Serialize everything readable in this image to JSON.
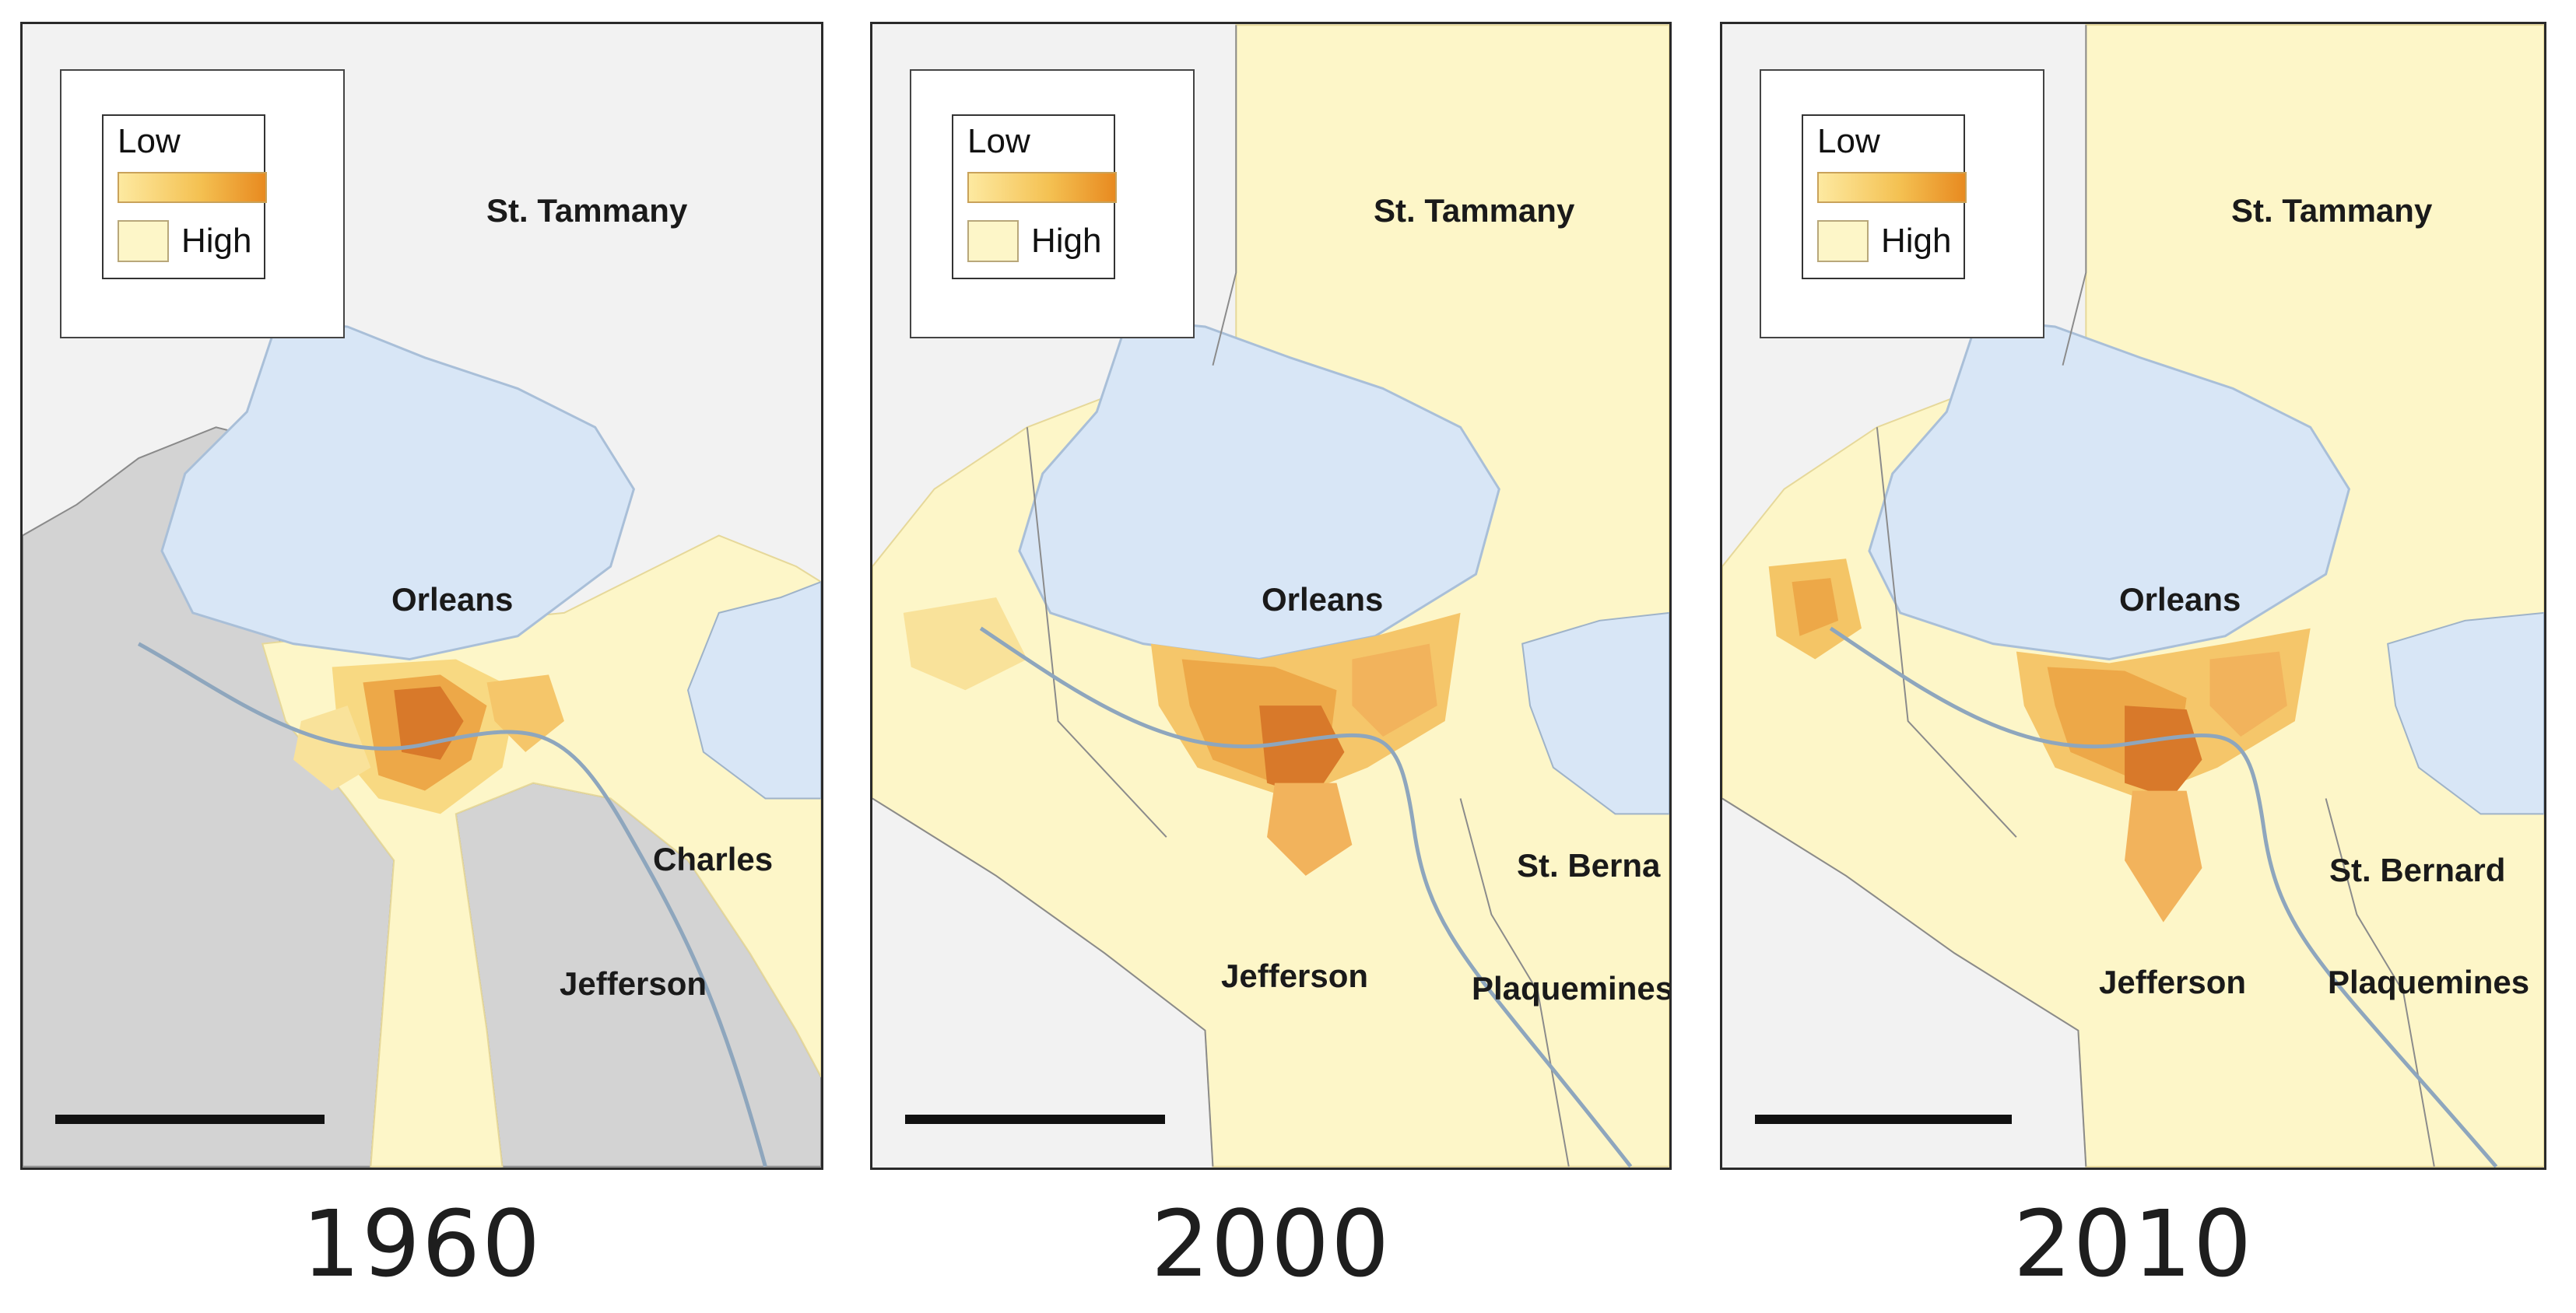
{
  "panels": [
    {
      "year": "1960",
      "legend": {
        "low": "Low",
        "high": "High"
      },
      "labels": {
        "tammany": "St. Tammany",
        "orleans": "Orleans",
        "charles": "Charles",
        "jefferson": "Jefferson"
      }
    },
    {
      "year": "2000",
      "legend": {
        "low": "Low",
        "high": "High"
      },
      "labels": {
        "tammany": "St. Tammany",
        "orleans": "Orleans",
        "bernard": "St. Berna",
        "jefferson": "Jefferson",
        "plaquemines": "Plaquemines"
      }
    },
    {
      "year": "2010",
      "legend": {
        "low": "Low",
        "high": "High"
      },
      "labels": {
        "tammany": "St. Tammany",
        "orleans": "Orleans",
        "bernard": "St. Bernard",
        "jefferson": "Jefferson",
        "plaquemines": "Plaquemines"
      }
    }
  ],
  "colors": {
    "lake": "#d8e6f6",
    "low_fill": "#fdf6c8",
    "mid_fill": "#f7d67a",
    "high_fill": "#e89a3a",
    "peak_fill": "#d8792a",
    "gray_parish": "#d6d6d6",
    "river": "#9fb3c8"
  }
}
